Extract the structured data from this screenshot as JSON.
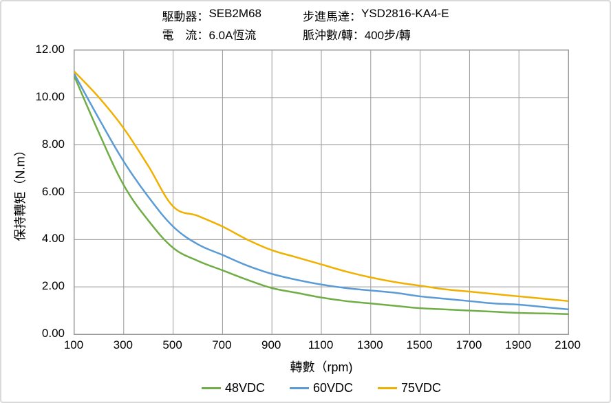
{
  "header": {
    "driver": {
      "key": "駆動器：",
      "value": "SEB2M68"
    },
    "motor": {
      "key": "步進馬達：",
      "value": "YSD2816-KA4-E"
    },
    "current": {
      "key": "電　流：",
      "value": "6.0A恆流"
    },
    "pulses": {
      "key": "脈沖數/轉：",
      "value": "400步/轉"
    }
  },
  "chart": {
    "type": "line",
    "xlabel": "轉數（rpm)",
    "ylabel": "保持轉矩（N.m）",
    "xlim": [
      100,
      2100
    ],
    "ylim": [
      0,
      12
    ],
    "x_ticks": [
      100,
      300,
      500,
      700,
      900,
      1100,
      1300,
      1500,
      1700,
      1900,
      2100
    ],
    "y_ticks": [
      0,
      2,
      4,
      6,
      8,
      10,
      12
    ],
    "y_tick_labels": [
      "0.00",
      "2.00",
      "4.00",
      "6.00",
      "8.00",
      "10.00",
      "12.00"
    ],
    "background_color": "#ffffff",
    "grid_color": "#999999",
    "border_color": "#999999",
    "series": [
      {
        "name": "48VDC",
        "color": "#70ad47",
        "x": [
          100,
          200,
          300,
          400,
          500,
          600,
          700,
          800,
          900,
          1000,
          1100,
          1200,
          1300,
          1400,
          1500,
          1600,
          1700,
          1800,
          1900,
          2000,
          2100
        ],
        "y": [
          10.9,
          8.5,
          6.3,
          4.8,
          3.65,
          3.1,
          2.7,
          2.3,
          1.95,
          1.75,
          1.55,
          1.4,
          1.3,
          1.2,
          1.1,
          1.05,
          1.0,
          0.95,
          0.9,
          0.88,
          0.85
        ]
      },
      {
        "name": "60VDC",
        "color": "#5b9bd5",
        "x": [
          100,
          200,
          300,
          400,
          500,
          600,
          700,
          800,
          900,
          1000,
          1100,
          1200,
          1300,
          1400,
          1500,
          1600,
          1700,
          1800,
          1900,
          2000,
          2100
        ],
        "y": [
          11.0,
          9.1,
          7.3,
          5.8,
          4.55,
          3.8,
          3.35,
          2.9,
          2.55,
          2.3,
          2.1,
          1.95,
          1.85,
          1.75,
          1.6,
          1.5,
          1.4,
          1.3,
          1.25,
          1.15,
          1.05
        ]
      },
      {
        "name": "75VDC",
        "color": "#f0b000",
        "x": [
          100,
          200,
          300,
          400,
          500,
          600,
          700,
          800,
          900,
          1000,
          1100,
          1200,
          1300,
          1400,
          1500,
          1600,
          1700,
          1800,
          1900,
          2000,
          2100
        ],
        "y": [
          11.1,
          10.0,
          8.7,
          7.1,
          5.4,
          5.0,
          4.55,
          4.0,
          3.55,
          3.25,
          2.95,
          2.65,
          2.4,
          2.2,
          2.05,
          1.9,
          1.8,
          1.7,
          1.6,
          1.5,
          1.4
        ]
      }
    ]
  }
}
